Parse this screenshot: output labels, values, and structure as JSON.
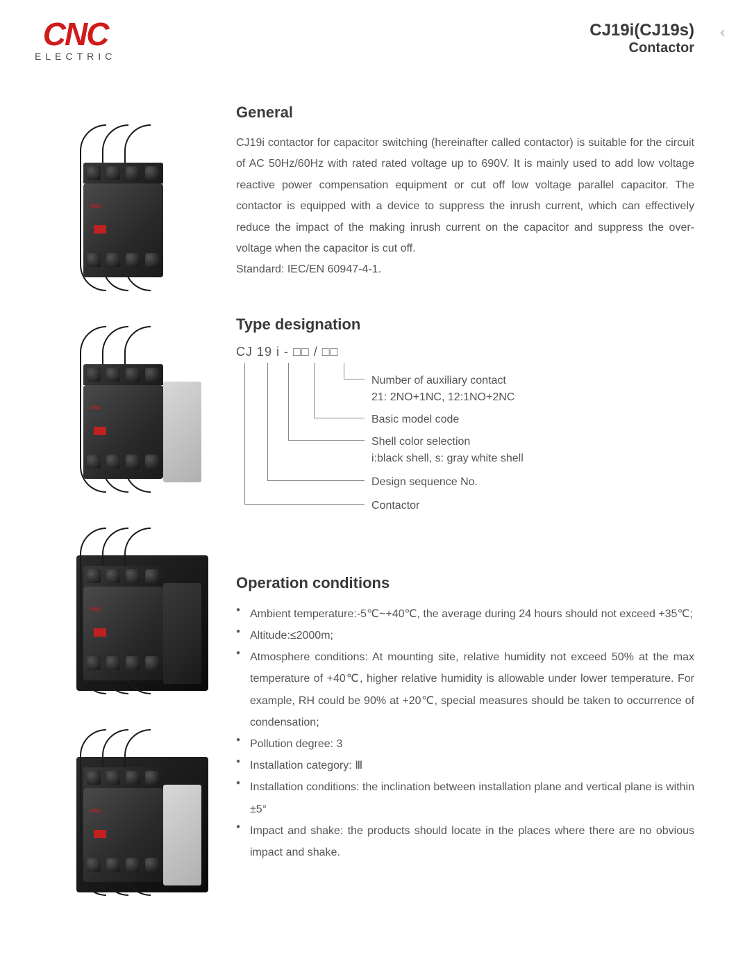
{
  "header": {
    "logo_main": "CNC",
    "logo_sub": "ELECTRIC",
    "model": "CJ19i(CJ19s)",
    "product_type": "Contactor"
  },
  "general": {
    "title": "General",
    "body": "CJ19i contactor for capacitor switching (hereinafter called contactor) is suitable for the circuit of AC 50Hz/60Hz with rated rated voltage up to 690V. It is mainly used to add low voltage reactive power compensation equipment or cut off low voltage parallel capacitor. The contactor is equipped with a device to suppress the inrush current, which can effectively reduce the impact of the making inrush current on the capacitor and suppress the over-voltage when the capacitor is cut off.",
    "standard": "Standard: IEC/EN 60947-4-1."
  },
  "type_designation": {
    "title": "Type designation",
    "code": "CJ 19 i - □□ / □□",
    "legend": [
      "Number of auxiliary contact\n21: 2NO+1NC, 12:1NO+2NC",
      "Basic model code",
      "Shell color selection\ni:black shell, s: gray white shell",
      "Design sequence No.",
      "Contactor"
    ]
  },
  "operation": {
    "title": "Operation conditions",
    "items": [
      "Ambient temperature:-5℃~+40℃, the average during 24 hours should not exceed +35℃;",
      "Altitude:≤2000m;",
      "Atmosphere conditions: At mounting site, relative humidity not exceed 50% at the max temperature of +40℃, higher relative humidity is allowable under lower temperature. For example, RH could be 90% at +20℃, special measures should be taken to occurrence of condensation;",
      "Pollution degree: 3",
      "Installation category: Ⅲ",
      "Installation conditions: the inclination between installation plane and vertical plane is within ±5°",
      "Impact and shake: the products should locate in the places where there are no obvious impact and shake."
    ]
  },
  "colors": {
    "brand_red": "#d01b1b",
    "heading": "#3a3a3a",
    "body": "#555555",
    "line": "#888888",
    "bg": "#ffffff"
  },
  "typography": {
    "body_fontsize": 16,
    "heading_fontsize": 22,
    "line_height": 1.9
  },
  "images": {
    "count": 4,
    "variants": [
      {
        "has_aux": false,
        "has_backplate": false
      },
      {
        "has_aux": true,
        "aux_color": "light",
        "has_backplate": false
      },
      {
        "has_aux": true,
        "aux_color": "dark",
        "has_backplate": true
      },
      {
        "has_aux": true,
        "aux_color": "light",
        "has_backplate": true
      }
    ]
  }
}
